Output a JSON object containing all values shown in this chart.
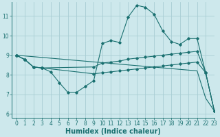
{
  "xlabel": "Humidex (Indice chaleur)",
  "background_color": "#cde8ec",
  "grid_color": "#a8cdd4",
  "line_color": "#1a7070",
  "xlim": [
    -0.5,
    23
  ],
  "ylim": [
    5.8,
    11.7
  ],
  "yticks": [
    6,
    7,
    8,
    9,
    10,
    11
  ],
  "xticks": [
    0,
    1,
    2,
    3,
    4,
    5,
    6,
    7,
    8,
    9,
    10,
    11,
    12,
    13,
    14,
    15,
    16,
    17,
    18,
    19,
    20,
    21,
    22,
    23
  ],
  "lines": [
    {
      "x": [
        0,
        1,
        2,
        3,
        4,
        5,
        6,
        7,
        8,
        9,
        10,
        11,
        12,
        13,
        14,
        15,
        16,
        17,
        18,
        19,
        20,
        21,
        22,
        23
      ],
      "y": [
        9.0,
        8.78,
        8.4,
        8.35,
        8.15,
        7.6,
        7.1,
        7.1,
        7.4,
        7.7,
        9.6,
        9.75,
        9.65,
        10.95,
        11.55,
        11.45,
        11.1,
        10.25,
        9.7,
        9.55,
        9.85,
        9.85,
        8.1,
        6.15
      ],
      "marker_x": [
        0,
        1,
        2,
        3,
        4,
        5,
        6,
        7,
        8,
        9,
        10,
        11,
        12,
        13,
        14,
        15,
        16,
        17,
        18,
        19,
        20,
        21,
        22,
        23
      ],
      "marker_y": [
        9.0,
        8.78,
        8.4,
        8.35,
        8.15,
        7.6,
        7.1,
        7.1,
        7.4,
        7.7,
        9.6,
        9.75,
        9.65,
        10.95,
        11.55,
        11.45,
        11.1,
        10.25,
        9.7,
        9.55,
        9.85,
        9.85,
        8.1,
        6.15
      ]
    },
    {
      "x": [
        0,
        1,
        2,
        3,
        9,
        10,
        11,
        12,
        13,
        14,
        15,
        16,
        17,
        18,
        19,
        20,
        21,
        22,
        23
      ],
      "y": [
        9.0,
        8.78,
        8.4,
        8.35,
        8.4,
        8.6,
        8.65,
        8.7,
        8.8,
        8.85,
        8.9,
        8.95,
        9.0,
        9.05,
        9.1,
        9.15,
        9.2,
        8.1,
        6.15
      ],
      "marker_x": [
        0,
        1,
        2,
        3,
        9,
        10,
        11,
        12,
        13,
        14,
        15,
        16,
        17,
        18,
        19,
        20,
        21,
        22,
        23
      ],
      "marker_y": [
        9.0,
        8.78,
        8.4,
        8.35,
        8.4,
        8.6,
        8.65,
        8.7,
        8.8,
        8.85,
        8.9,
        8.95,
        9.0,
        9.05,
        9.1,
        9.15,
        9.2,
        8.1,
        6.15
      ]
    },
    {
      "x": [
        0,
        1,
        2,
        3,
        9,
        10,
        11,
        12,
        13,
        14,
        15,
        16,
        17,
        18,
        19,
        20,
        21,
        22,
        23
      ],
      "y": [
        9.0,
        8.78,
        8.4,
        8.35,
        8.05,
        8.1,
        8.15,
        8.2,
        8.25,
        8.3,
        8.35,
        8.4,
        8.45,
        8.5,
        8.55,
        8.6,
        8.65,
        8.1,
        6.15
      ],
      "marker_x": [
        0,
        1,
        2,
        3,
        9,
        10,
        11,
        12,
        13,
        14,
        15,
        16,
        17,
        18,
        19,
        20,
        21,
        22,
        23
      ],
      "marker_y": [
        9.0,
        8.78,
        8.4,
        8.35,
        8.05,
        8.1,
        8.15,
        8.2,
        8.25,
        8.3,
        8.35,
        8.4,
        8.45,
        8.5,
        8.55,
        8.6,
        8.65,
        8.1,
        6.15
      ]
    },
    {
      "x": [
        0,
        21,
        22,
        23
      ],
      "y": [
        9.0,
        8.2,
        6.8,
        6.15
      ],
      "marker_x": [],
      "marker_y": []
    }
  ],
  "tick_fontsize": 5.5,
  "xlabel_fontsize": 7
}
